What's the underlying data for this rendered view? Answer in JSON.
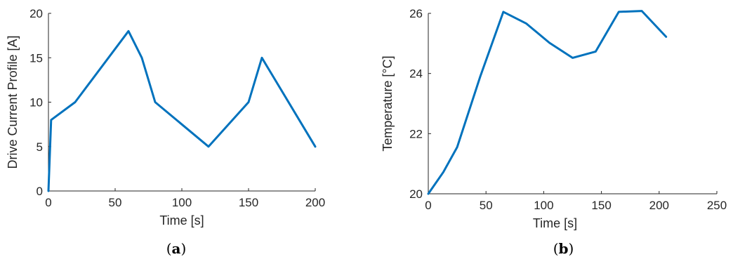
{
  "chart_data": [
    {
      "type": "line",
      "panel_label": "(a)",
      "panel_label_bold": "a",
      "xlabel": "Time [s]",
      "ylabel": "Drive Current Profile [A]",
      "xlim": [
        0,
        200
      ],
      "ylim": [
        0,
        20
      ],
      "xticks": [
        0,
        50,
        100,
        150,
        200
      ],
      "yticks": [
        0,
        5,
        10,
        15,
        20
      ],
      "grid": false,
      "color": "#0072BD",
      "series": [
        {
          "x": [
            0,
            2,
            20,
            30,
            60,
            70,
            80,
            120,
            150,
            160,
            200
          ],
          "y": [
            0,
            8,
            10,
            12,
            18,
            15,
            10,
            5,
            10,
            15,
            5
          ]
        }
      ]
    },
    {
      "type": "line",
      "panel_label": "(b)",
      "panel_label_bold": "b",
      "xlabel": "Time [s]",
      "ylabel": "Temperature [°C]",
      "xlim": [
        0,
        250
      ],
      "ylim": [
        20,
        26
      ],
      "xticks": [
        0,
        50,
        100,
        150,
        200,
        250
      ],
      "yticks": [
        20,
        22,
        24,
        26
      ],
      "grid": false,
      "color": "#0072BD",
      "series": [
        {
          "x": [
            0,
            13,
            25,
            45,
            65,
            85,
            105,
            125,
            145,
            165,
            185,
            206
          ],
          "y": [
            20,
            20.72,
            21.55,
            23.9,
            26.05,
            25.66,
            25.02,
            24.52,
            24.73,
            26.05,
            26.08,
            25.22
          ]
        }
      ]
    }
  ]
}
